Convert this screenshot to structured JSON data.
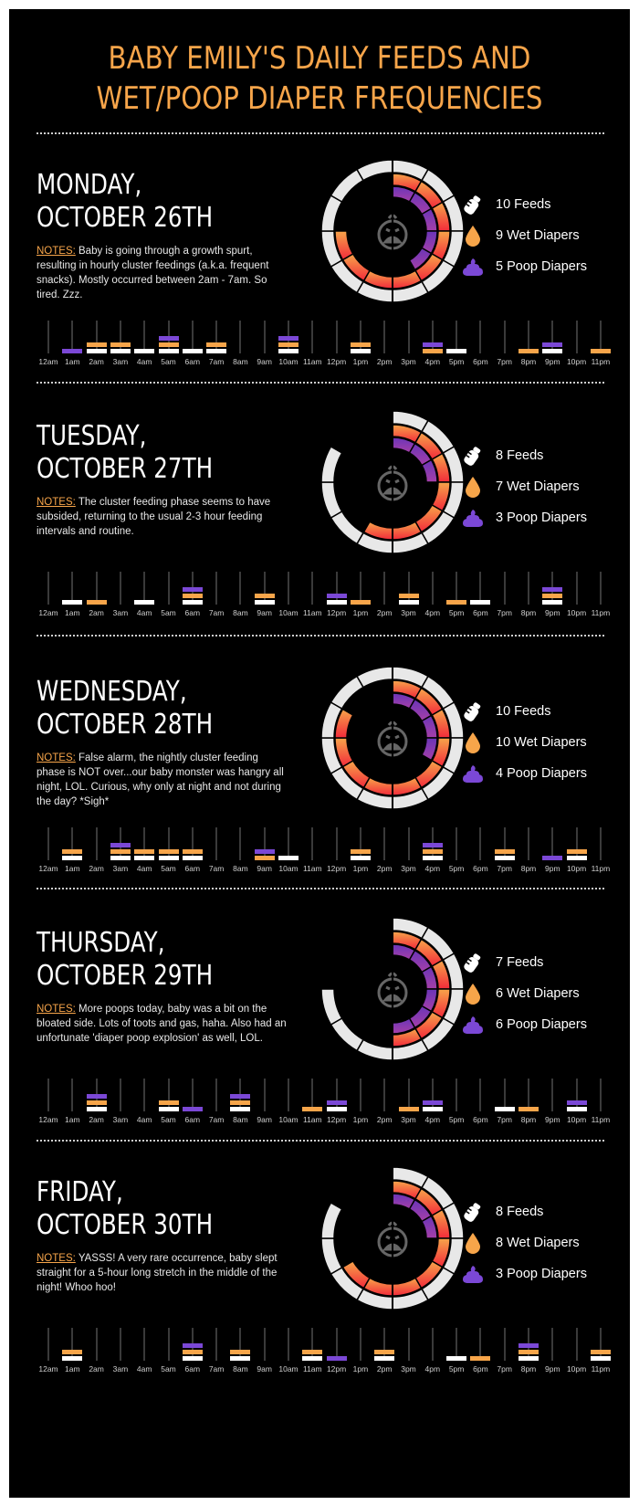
{
  "title": "BABY EMILY'S DAILY FEEDS AND WET/POOP DIAPER FREQUENCIES",
  "title_line1": "BABY EMILY'S DAILY FEEDS AND",
  "title_line2": "WET/POOP DIAPER FREQUENCIES",
  "colors": {
    "feed": "#ffffff",
    "wet": "#f7a54a",
    "poop": "#7b48d6",
    "accent": "#f7a54a",
    "background": "#000000"
  },
  "hours": [
    "12am",
    "1am",
    "2am",
    "3am",
    "4am",
    "5am",
    "6am",
    "7am",
    "8am",
    "9am",
    "10am",
    "11am",
    "12pm",
    "1pm",
    "2pm",
    "3pm",
    "4pm",
    "5pm",
    "6pm",
    "7pm",
    "8pm",
    "9pm",
    "10pm",
    "11pm"
  ],
  "notes_label": "NOTES:",
  "days": [
    {
      "title_line1": "MONDAY,",
      "title_line2": "OCTOBER 26TH",
      "notes": "Baby is going through a growth spurt, resulting in hourly cluster feedings (a.k.a. frequent snacks). Mostly occurred between 2am - 7am. So tired. Zzz.",
      "feeds_label": "10 Feeds",
      "wet_label": "9 Wet Diapers",
      "poop_label": "5 Poop Diapers",
      "feeds": 10,
      "wet": 9,
      "poop": 5
    },
    {
      "title_line1": "TUESDAY,",
      "title_line2": "OCTOBER 27TH",
      "notes": "The cluster feeding phase seems to have subsided, returning to the usual 2-3 hour feeding intervals and routine.",
      "feeds_label": "8 Feeds",
      "wet_label": "7 Wet Diapers",
      "poop_label": "3 Poop Diapers",
      "feeds": 8,
      "wet": 7,
      "poop": 3
    },
    {
      "title_line1": "WEDNESDAY,",
      "title_line2": "OCTOBER 28TH",
      "notes": "False alarm, the nightly cluster feeding phase is NOT over...our baby monster was hangry all night, LOL. Curious, why only at night and not during the day? *Sigh*",
      "feeds_label": "10 Feeds",
      "wet_label": "10 Wet Diapers",
      "poop_label": "4 Poop Diapers",
      "feeds": 10,
      "wet": 10,
      "poop": 4
    },
    {
      "title_line1": "THURSDAY,",
      "title_line2": "OCTOBER 29TH",
      "notes": "More poops today, baby was a bit on the bloated side. Lots of toots and gas, haha. Also had an unfortunate 'diaper poop explosion' as well, LOL.",
      "feeds_label": "7 Feeds",
      "wet_label": "6 Wet Diapers",
      "poop_label": "6 Poop Diapers",
      "feeds": 7,
      "wet": 6,
      "poop": 6
    },
    {
      "title_line1": "FRIDAY,",
      "title_line2": "OCTOBER 30TH",
      "notes": "YASSS! A very rare occurrence, baby slept straight for a 5-hour long stretch in the middle of the night! Whoo hoo!",
      "feeds_label": "8 Feeds",
      "wet_label": "8 Wet Diapers",
      "poop_label": "3 Poop Diapers",
      "feeds": 8,
      "wet": 8,
      "poop": 3
    }
  ],
  "chart_data": [
    {
      "type": "bar",
      "title": "Monday, October 26th — hourly events",
      "categories": [
        "12am",
        "1am",
        "2am",
        "3am",
        "4am",
        "5am",
        "6am",
        "7am",
        "8am",
        "9am",
        "10am",
        "11am",
        "12pm",
        "1pm",
        "2pm",
        "3pm",
        "4pm",
        "5pm",
        "6pm",
        "7pm",
        "8pm",
        "9pm",
        "10pm",
        "11pm"
      ],
      "series": [
        {
          "name": "Feed",
          "values": [
            0,
            0,
            1,
            1,
            1,
            1,
            1,
            1,
            0,
            0,
            1,
            0,
            0,
            1,
            0,
            0,
            0,
            1,
            0,
            0,
            0,
            1,
            0,
            0
          ]
        },
        {
          "name": "Wet Diaper",
          "values": [
            0,
            0,
            1,
            1,
            0,
            1,
            0,
            1,
            0,
            0,
            1,
            0,
            0,
            1,
            0,
            0,
            1,
            0,
            0,
            0,
            1,
            0,
            0,
            1
          ]
        },
        {
          "name": "Poop Diaper",
          "values": [
            0,
            1,
            0,
            0,
            0,
            1,
            0,
            0,
            0,
            0,
            1,
            0,
            0,
            0,
            0,
            0,
            1,
            0,
            0,
            0,
            0,
            1,
            0,
            0
          ]
        }
      ],
      "totals": {
        "feeds": 10,
        "wet": 9,
        "poop": 5
      }
    },
    {
      "type": "bar",
      "title": "Tuesday, October 27th — hourly events",
      "categories": [
        "12am",
        "1am",
        "2am",
        "3am",
        "4am",
        "5am",
        "6am",
        "7am",
        "8am",
        "9am",
        "10am",
        "11am",
        "12pm",
        "1pm",
        "2pm",
        "3pm",
        "4pm",
        "5pm",
        "6pm",
        "7pm",
        "8pm",
        "9pm",
        "10pm",
        "11pm"
      ],
      "series": [
        {
          "name": "Feed",
          "values": [
            0,
            1,
            0,
            0,
            1,
            0,
            1,
            0,
            0,
            1,
            0,
            0,
            1,
            0,
            0,
            1,
            0,
            0,
            1,
            0,
            0,
            1,
            0,
            0
          ]
        },
        {
          "name": "Wet Diaper",
          "values": [
            0,
            0,
            1,
            0,
            0,
            0,
            1,
            0,
            0,
            1,
            0,
            0,
            0,
            1,
            0,
            1,
            0,
            1,
            0,
            0,
            0,
            1,
            0,
            0
          ]
        },
        {
          "name": "Poop Diaper",
          "values": [
            0,
            0,
            0,
            0,
            0,
            0,
            1,
            0,
            0,
            0,
            0,
            0,
            1,
            0,
            0,
            0,
            0,
            0,
            0,
            0,
            0,
            1,
            0,
            0
          ]
        }
      ],
      "totals": {
        "feeds": 8,
        "wet": 7,
        "poop": 3
      }
    },
    {
      "type": "bar",
      "title": "Wednesday, October 28th — hourly events",
      "categories": [
        "12am",
        "1am",
        "2am",
        "3am",
        "4am",
        "5am",
        "6am",
        "7am",
        "8am",
        "9am",
        "10am",
        "11am",
        "12pm",
        "1pm",
        "2pm",
        "3pm",
        "4pm",
        "5pm",
        "6pm",
        "7pm",
        "8pm",
        "9pm",
        "10pm",
        "11pm"
      ],
      "series": [
        {
          "name": "Feed",
          "values": [
            0,
            1,
            0,
            1,
            1,
            1,
            1,
            0,
            0,
            0,
            1,
            0,
            0,
            1,
            0,
            0,
            1,
            0,
            0,
            1,
            0,
            0,
            1,
            0
          ]
        },
        {
          "name": "Wet Diaper",
          "values": [
            0,
            1,
            0,
            1,
            1,
            1,
            1,
            0,
            0,
            1,
            0,
            0,
            0,
            1,
            0,
            0,
            1,
            0,
            0,
            1,
            0,
            0,
            1,
            0
          ]
        },
        {
          "name": "Poop Diaper",
          "values": [
            0,
            0,
            0,
            1,
            0,
            0,
            0,
            0,
            0,
            1,
            0,
            0,
            0,
            0,
            0,
            0,
            1,
            0,
            0,
            0,
            0,
            1,
            0,
            0
          ]
        }
      ],
      "totals": {
        "feeds": 10,
        "wet": 10,
        "poop": 4
      }
    },
    {
      "type": "bar",
      "title": "Thursday, October 29th — hourly events",
      "categories": [
        "12am",
        "1am",
        "2am",
        "3am",
        "4am",
        "5am",
        "6am",
        "7am",
        "8am",
        "9am",
        "10am",
        "11am",
        "12pm",
        "1pm",
        "2pm",
        "3pm",
        "4pm",
        "5pm",
        "6pm",
        "7pm",
        "8pm",
        "9pm",
        "10pm",
        "11pm"
      ],
      "series": [
        {
          "name": "Feed",
          "values": [
            0,
            0,
            1,
            0,
            0,
            1,
            0,
            0,
            1,
            0,
            0,
            0,
            1,
            0,
            0,
            0,
            1,
            0,
            0,
            1,
            0,
            0,
            1,
            0
          ]
        },
        {
          "name": "Wet Diaper",
          "values": [
            0,
            0,
            1,
            0,
            0,
            1,
            0,
            0,
            1,
            0,
            0,
            1,
            0,
            0,
            0,
            1,
            0,
            0,
            0,
            0,
            1,
            0,
            0,
            0
          ]
        },
        {
          "name": "Poop Diaper",
          "values": [
            0,
            0,
            1,
            0,
            0,
            0,
            1,
            0,
            1,
            0,
            0,
            0,
            1,
            0,
            0,
            0,
            1,
            0,
            0,
            0,
            0,
            0,
            1,
            0
          ]
        }
      ],
      "totals": {
        "feeds": 7,
        "wet": 6,
        "poop": 6
      }
    },
    {
      "type": "bar",
      "title": "Friday, October 30th — hourly events",
      "categories": [
        "12am",
        "1am",
        "2am",
        "3am",
        "4am",
        "5am",
        "6am",
        "7am",
        "8am",
        "9am",
        "10am",
        "11am",
        "12pm",
        "1pm",
        "2pm",
        "3pm",
        "4pm",
        "5pm",
        "6pm",
        "7pm",
        "8pm",
        "9pm",
        "10pm",
        "11pm"
      ],
      "series": [
        {
          "name": "Feed",
          "values": [
            0,
            1,
            0,
            0,
            0,
            0,
            1,
            0,
            1,
            0,
            0,
            1,
            0,
            0,
            1,
            0,
            0,
            1,
            0,
            0,
            1,
            0,
            0,
            1
          ]
        },
        {
          "name": "Wet Diaper",
          "values": [
            0,
            1,
            0,
            0,
            0,
            0,
            1,
            0,
            1,
            0,
            0,
            1,
            0,
            0,
            1,
            0,
            0,
            0,
            1,
            0,
            1,
            0,
            0,
            1
          ]
        },
        {
          "name": "Poop Diaper",
          "values": [
            0,
            0,
            0,
            0,
            0,
            0,
            1,
            0,
            0,
            0,
            0,
            0,
            1,
            0,
            0,
            0,
            0,
            0,
            0,
            0,
            1,
            0,
            0,
            0
          ]
        }
      ],
      "totals": {
        "feeds": 8,
        "wet": 8,
        "poop": 3
      }
    }
  ]
}
